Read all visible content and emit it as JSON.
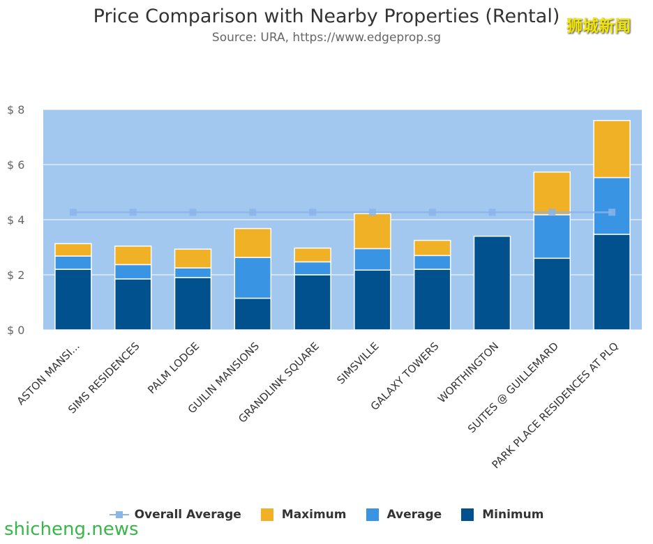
{
  "watermark_top": "狮城新闻",
  "watermark_bottom": "shicheng.news",
  "chart_data": {
    "type": "bar",
    "stacked": true,
    "title": "Price Comparison with Nearby Properties (Rental)",
    "subtitle": "Source: URA, https://www.edgeprop.sg",
    "categories": [
      "ASTON MANSI...",
      "SIMS RESIDENCES",
      "PALM LODGE",
      "GUILIN MANSIONS",
      "GRANDLINK SQUARE",
      "SIMSVILLE",
      "GALAXY TOWERS",
      "WORTHINGTON",
      "SUITES @ GUILLEMARD",
      "PARK PLACE RESIDENCES AT PLQ"
    ],
    "series": [
      {
        "name": "Minimum",
        "color": "#02518f",
        "values": [
          2.2,
          1.85,
          1.9,
          1.15,
          2.0,
          2.17,
          2.2,
          3.4,
          2.6,
          3.47
        ]
      },
      {
        "name": "Average",
        "color": "#3a94e4",
        "values": [
          0.48,
          0.52,
          0.35,
          1.48,
          0.47,
          0.78,
          0.5,
          0,
          1.58,
          2.06
        ]
      },
      {
        "name": "Maximum",
        "color": "#f1b127",
        "values": [
          0.45,
          0.67,
          0.68,
          1.05,
          0.5,
          1.27,
          0.55,
          0,
          1.55,
          2.07
        ]
      }
    ],
    "line": {
      "name": "Overall Average",
      "color": "#8ab5e8",
      "value": 4.27
    },
    "ylim": [
      0,
      8
    ],
    "yticks": [
      0,
      2,
      4,
      6,
      8
    ],
    "ytick_labels": [
      "$ 0",
      "$ 2",
      "$ 4",
      "$ 6",
      "$ 8"
    ],
    "plot_background": "#a3c8ef",
    "legend": [
      {
        "name": "Overall Average",
        "symbol": "line",
        "color": "#8ab5e8"
      },
      {
        "name": "Maximum",
        "symbol": "box",
        "color": "#f1b127"
      },
      {
        "name": "Average",
        "symbol": "box",
        "color": "#3a94e4"
      },
      {
        "name": "Minimum",
        "symbol": "box",
        "color": "#02518f"
      }
    ],
    "legend_position": "bottom"
  }
}
